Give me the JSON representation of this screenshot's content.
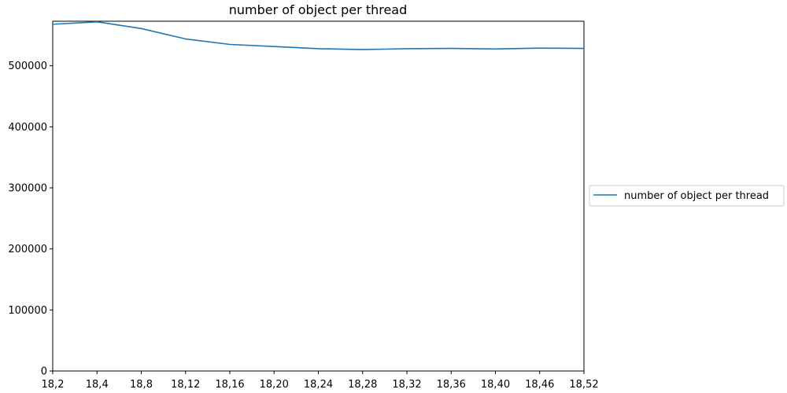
{
  "chart_data": {
    "type": "line",
    "title": "number of object per thread",
    "xlabel": "",
    "ylabel": "",
    "categories": [
      "18,2",
      "18,4",
      "18,8",
      "18,12",
      "18,16",
      "18,20",
      "18,24",
      "18,28",
      "18,32",
      "18,36",
      "18,40",
      "18,46",
      "18,52"
    ],
    "series": [
      {
        "name": "number of object per thread",
        "values": [
          568000,
          572000,
          561000,
          544000,
          535000,
          531500,
          528000,
          526500,
          528000,
          528500,
          527500,
          529000,
          528500
        ],
        "color": "#1f77b4"
      }
    ],
    "ylim": [
      0,
      573000
    ],
    "yticks": [
      0,
      100000,
      200000,
      300000,
      400000,
      500000
    ],
    "ytick_labels": [
      "0",
      "100000",
      "200000",
      "300000",
      "400000",
      "500000"
    ],
    "grid": false,
    "legend_position": "center-right-outside"
  }
}
